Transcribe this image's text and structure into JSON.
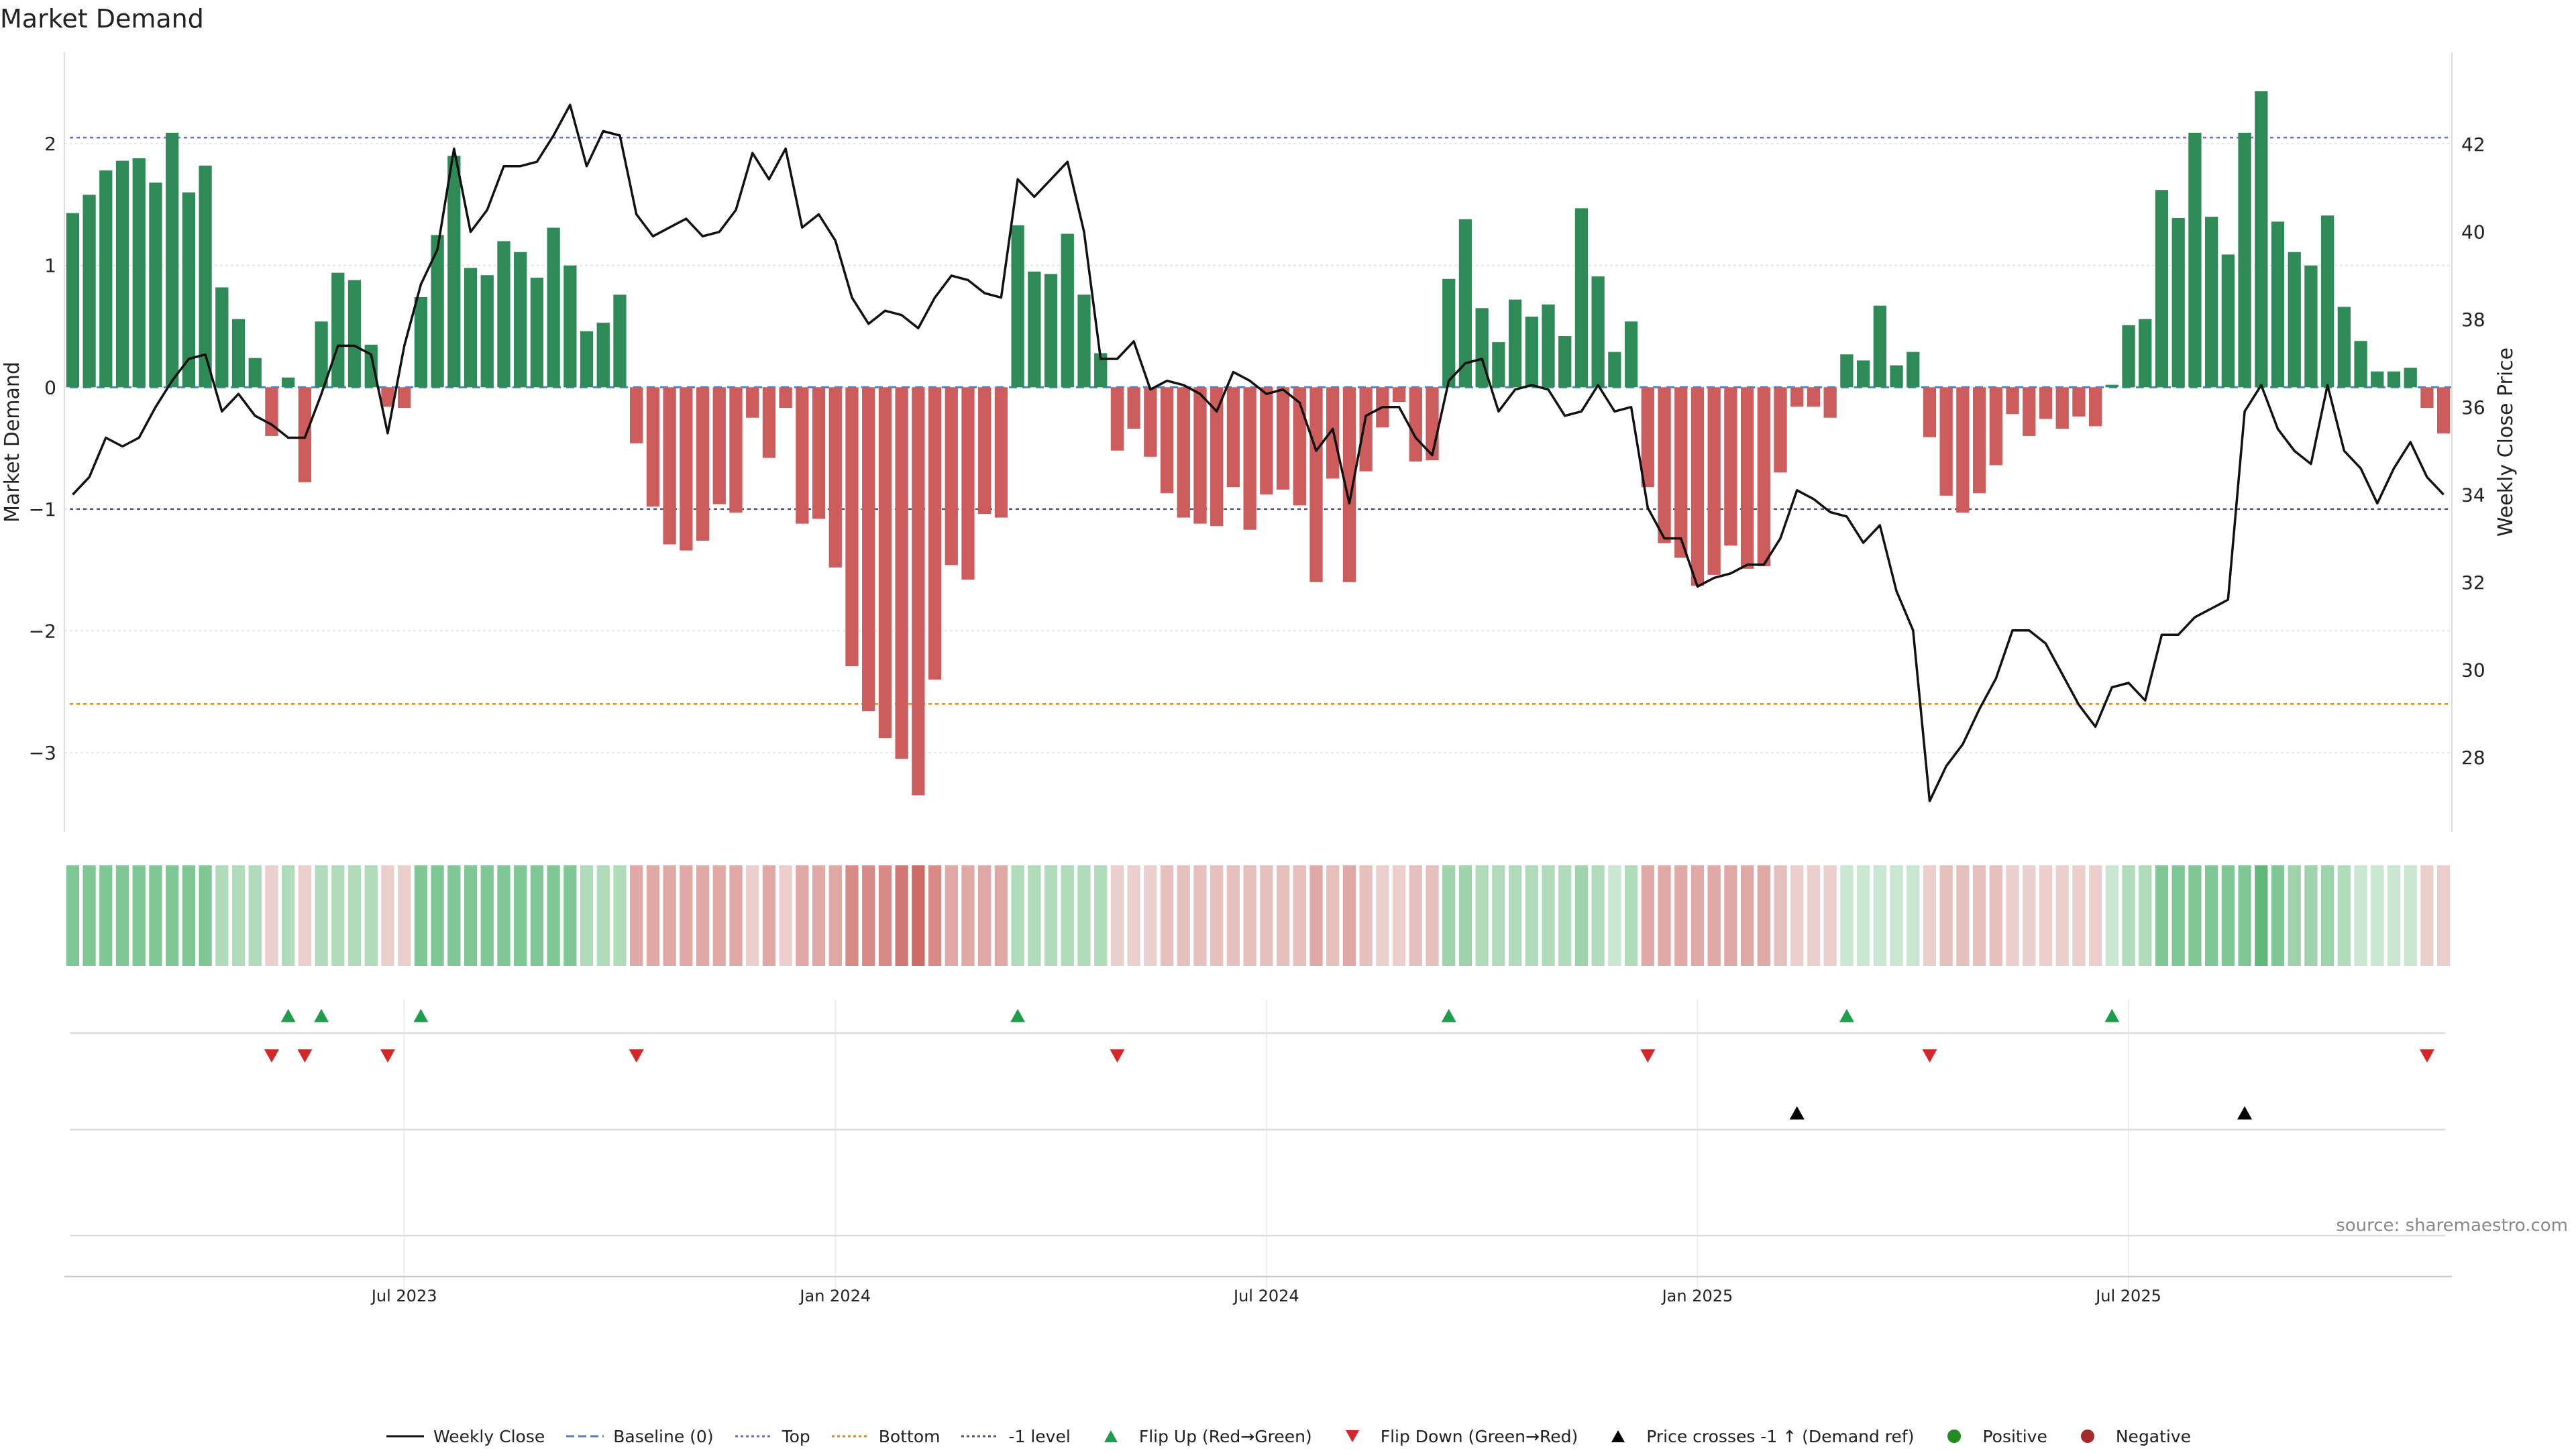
{
  "title": "Market Demand",
  "source": "source: sharemaestro.com",
  "colors": {
    "positive_bar": "#2e8b57",
    "negative_bar": "#cd5c5c",
    "price_line": "#111111",
    "top_line": "#6a6acd",
    "bottom_line": "#e08a1e",
    "minus1_line": "#555577",
    "baseline": "#4f7fc0",
    "flip_up": "#1f9d4a",
    "flip_down": "#d62728",
    "cross": "#000000",
    "positive_dot": "#228b22",
    "negative_dot": "#a52a2a"
  },
  "legend": [
    {
      "label": "Weekly Close",
      "kind": "solid-line",
      "color": "#111111"
    },
    {
      "label": "Baseline (0)",
      "kind": "dashed-line",
      "color": "#4f7fc0"
    },
    {
      "label": "Top",
      "kind": "dotted-line",
      "color": "#6a6acd"
    },
    {
      "label": "Bottom",
      "kind": "dotted-line",
      "color": "#e08a1e"
    },
    {
      "label": "-1 level",
      "kind": "dotted-line",
      "color": "#555577"
    },
    {
      "label": "Flip Up (Red→Green)",
      "kind": "tri-up",
      "color": "#1f9d4a"
    },
    {
      "label": "Flip Down (Green→Red)",
      "kind": "tri-down",
      "color": "#d62728"
    },
    {
      "label": "Price crosses -1 ↑ (Demand ref)",
      "kind": "tri-up",
      "color": "#000000"
    },
    {
      "label": "Positive",
      "kind": "dot",
      "color": "#228b22"
    },
    {
      "label": "Negative",
      "kind": "dot",
      "color": "#a52a2a"
    }
  ],
  "chart_data": {
    "type": "bar",
    "ylabel": "Market Demand",
    "y2label": "Weekly Close Price",
    "ylim": [
      -3.65,
      2.75
    ],
    "y2lim": [
      26.3,
      44.1
    ],
    "yticks": [
      2,
      1,
      0,
      -1,
      -2,
      -3
    ],
    "ytick_labels": [
      "2",
      "1",
      "0",
      "−1",
      "−2",
      "−3"
    ],
    "y2ticks": [
      42,
      40,
      38,
      36,
      34,
      32,
      30,
      28
    ],
    "reference_levels": {
      "top": 2.05,
      "bottom": -2.6,
      "minus_one": -1,
      "baseline": 0
    },
    "x_tick_labels": [
      {
        "index": 20,
        "label": "Jul 2023"
      },
      {
        "index": 46,
        "label": "Jan 2024"
      },
      {
        "index": 72,
        "label": "Jul 2024"
      },
      {
        "index": 98,
        "label": "Jan 2025"
      },
      {
        "index": 124,
        "label": "Jul 2025"
      }
    ],
    "demand": [
      1.43,
      1.58,
      1.78,
      1.86,
      1.88,
      1.68,
      2.09,
      1.6,
      1.82,
      0.82,
      0.56,
      0.24,
      -0.4,
      0.08,
      -0.78,
      0.54,
      0.94,
      0.88,
      0.35,
      -0.16,
      -0.17,
      0.74,
      1.25,
      1.9,
      0.98,
      0.92,
      1.2,
      1.11,
      0.9,
      1.31,
      1.0,
      0.46,
      0.53,
      0.76,
      -0.46,
      -0.98,
      -1.29,
      -1.34,
      -1.26,
      -0.96,
      -1.03,
      -0.25,
      -0.58,
      -0.17,
      -1.12,
      -1.08,
      -1.48,
      -2.29,
      -2.66,
      -2.88,
      -3.05,
      -3.35,
      -2.4,
      -1.46,
      -1.58,
      -1.04,
      -1.07,
      1.33,
      0.95,
      0.93,
      1.26,
      0.76,
      0.28,
      -0.52,
      -0.34,
      -0.57,
      -0.87,
      -1.07,
      -1.12,
      -1.14,
      -0.82,
      -1.17,
      -0.88,
      -0.84,
      -0.97,
      -1.6,
      -0.75,
      -1.6,
      -0.69,
      -0.33,
      -0.12,
      -0.61,
      -0.6,
      0.89,
      1.38,
      0.65,
      0.37,
      0.72,
      0.58,
      0.68,
      0.42,
      1.47,
      0.91,
      0.29,
      0.54,
      -0.82,
      -1.28,
      -1.4,
      -1.63,
      -1.54,
      -1.3,
      -1.49,
      -1.47,
      -0.7,
      -0.16,
      -0.16,
      -0.25,
      0.27,
      0.22,
      0.67,
      0.18,
      0.29,
      -0.41,
      -0.89,
      -1.03,
      -0.87,
      -0.64,
      -0.22,
      -0.4,
      -0.26,
      -0.34,
      -0.24,
      -0.32,
      0.02,
      0.51,
      0.56,
      1.62,
      1.39,
      2.09,
      1.4,
      1.09,
      2.09,
      2.43,
      1.36,
      1.11,
      1.0,
      1.41,
      0.66,
      0.38,
      0.13,
      0.13,
      0.16,
      -0.17,
      -0.38
    ],
    "weekly_close": [
      34.0,
      34.4,
      35.3,
      35.1,
      35.3,
      36.0,
      36.6,
      37.1,
      37.2,
      35.9,
      36.3,
      35.8,
      35.6,
      35.3,
      35.3,
      36.3,
      37.4,
      37.4,
      37.2,
      35.4,
      37.4,
      38.8,
      39.6,
      41.9,
      40.0,
      40.5,
      41.5,
      41.5,
      41.6,
      42.2,
      42.9,
      41.5,
      42.3,
      42.2,
      40.4,
      39.9,
      40.1,
      40.3,
      39.9,
      40.0,
      40.5,
      41.8,
      41.2,
      41.9,
      40.1,
      40.4,
      39.8,
      38.5,
      37.9,
      38.2,
      38.1,
      37.8,
      38.5,
      39.0,
      38.9,
      38.6,
      38.5,
      41.2,
      40.8,
      41.2,
      41.6,
      40.0,
      37.1,
      37.1,
      37.5,
      36.4,
      36.6,
      36.5,
      36.3,
      35.9,
      36.8,
      36.6,
      36.3,
      36.4,
      36.1,
      35.0,
      35.5,
      33.8,
      35.8,
      36.0,
      36.0,
      35.3,
      34.9,
      36.6,
      37.0,
      37.1,
      35.9,
      36.4,
      36.5,
      36.4,
      35.8,
      35.9,
      36.5,
      35.9,
      36.0,
      33.7,
      33.0,
      33.0,
      31.9,
      32.1,
      32.2,
      32.4,
      32.4,
      33.0,
      34.1,
      33.9,
      33.6,
      33.5,
      32.9,
      33.3,
      31.8,
      30.9,
      27.0,
      27.8,
      28.3,
      29.1,
      29.8,
      30.9,
      30.9,
      30.6,
      29.9,
      29.2,
      28.7,
      29.6,
      29.7,
      29.3,
      30.8,
      30.8,
      31.2,
      31.4,
      31.6,
      35.9,
      36.5,
      35.5,
      35.0,
      34.7,
      36.5,
      35.0,
      34.6,
      33.8,
      34.6,
      35.2,
      34.4,
      34.0
    ],
    "heat_strip_colors": [
      "#7fc896",
      "#7fc896",
      "#7fc896",
      "#7fc896",
      "#7fc896",
      "#7fc896",
      "#7fc896",
      "#7fc896",
      "#7fc896",
      "#b0dcbc",
      "#b0dcbc",
      "#b0dcbc",
      "#ebcfcd",
      "#b0dcbc",
      "#ebcfcd",
      "#b0dcbc",
      "#b0dcbc",
      "#b0dcbc",
      "#b0dcbc",
      "#ebcfcd",
      "#ebcfcd",
      "#7fc896",
      "#7fc896",
      "#7fc896",
      "#7fc896",
      "#7fc896",
      "#7fc896",
      "#7fc896",
      "#7fc896",
      "#7fc896",
      "#7fc896",
      "#b0dcbc",
      "#b0dcbc",
      "#b0dcbc",
      "#e1a9a6",
      "#e1a9a6",
      "#e1a9a6",
      "#e1a9a6",
      "#e1a9a6",
      "#e1a9a6",
      "#e1a9a6",
      "#ebcfcd",
      "#e1a9a6",
      "#ebcfcd",
      "#e1a9a6",
      "#e1a9a6",
      "#e1a9a6",
      "#d88a86",
      "#d88a86",
      "#d88a86",
      "#d07874",
      "#cc6b66",
      "#d88a86",
      "#e1a9a6",
      "#e1a9a6",
      "#e1a9a6",
      "#e1a9a6",
      "#b0dcbc",
      "#b0dcbc",
      "#b0dcbc",
      "#b0dcbc",
      "#b0dcbc",
      "#b0dcbc",
      "#ebcfcd",
      "#ebcfcd",
      "#ebcfcd",
      "#e6c0bd",
      "#e6c0bd",
      "#e6c0bd",
      "#e6c0bd",
      "#e6c0bd",
      "#e6c0bd",
      "#e6c0bd",
      "#e6c0bd",
      "#e6c0bd",
      "#e1a9a6",
      "#e6c0bd",
      "#e1a9a6",
      "#e6c0bd",
      "#ebcfcd",
      "#ebcfcd",
      "#e6c0bd",
      "#e6c0bd",
      "#9ed3ac",
      "#9ed3ac",
      "#b0dcbc",
      "#b0dcbc",
      "#b0dcbc",
      "#b0dcbc",
      "#b0dcbc",
      "#b0dcbc",
      "#9ed3ac",
      "#b0dcbc",
      "#c8e6d0",
      "#b0dcbc",
      "#e1a9a6",
      "#e1a9a6",
      "#e1a9a6",
      "#e1a9a6",
      "#e1a9a6",
      "#e1a9a6",
      "#e1a9a6",
      "#e1a9a6",
      "#e6c0bd",
      "#ebcfcd",
      "#ebcfcd",
      "#ebcfcd",
      "#c8e6d0",
      "#c8e6d0",
      "#c8e6d0",
      "#c8e6d0",
      "#c8e6d0",
      "#ebcfcd",
      "#e6c0bd",
      "#e6c0bd",
      "#e6c0bd",
      "#e6c0bd",
      "#ebcfcd",
      "#ebcfcd",
      "#ebcfcd",
      "#ebcfcd",
      "#ebcfcd",
      "#ebcfcd",
      "#c8e6d0",
      "#b0dcbc",
      "#b0dcbc",
      "#7fc896",
      "#7fc896",
      "#7fc896",
      "#7fc896",
      "#7fc896",
      "#7fc896",
      "#5fb87a",
      "#7fc896",
      "#9ed3ac",
      "#9ed3ac",
      "#9ed3ac",
      "#b0dcbc",
      "#c8e6d0",
      "#c8e6d0",
      "#c8e6d0",
      "#c8e6d0",
      "#ebcfcd",
      "#ebcfcd"
    ],
    "flip_up_indices": [
      13,
      15,
      21,
      57,
      83,
      107,
      123
    ],
    "flip_down_indices": [
      12,
      14,
      19,
      34,
      63,
      95,
      112,
      142
    ],
    "price_cross_indices": [
      104,
      131
    ]
  }
}
